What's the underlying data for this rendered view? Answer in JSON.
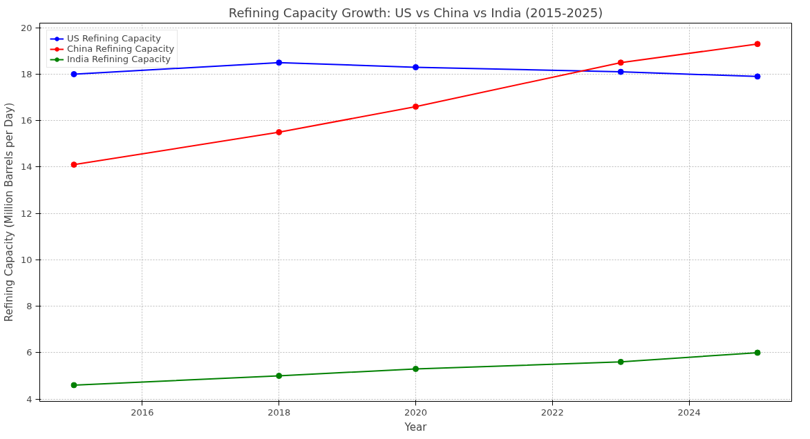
{
  "chart_data": {
    "type": "line",
    "title": "Refining Capacity Growth: US vs China vs India (2015-2025)",
    "xlabel": "Year",
    "ylabel": "Refining Capacity (Million Barrels per Day)",
    "x": [
      2015,
      2018,
      2020,
      2023,
      2025
    ],
    "series": [
      {
        "name": "US Refining Capacity",
        "color": "#0000ff",
        "values": [
          18.0,
          18.5,
          18.3,
          18.1,
          17.9
        ]
      },
      {
        "name": "China Refining Capacity",
        "color": "#ff0000",
        "values": [
          14.1,
          15.5,
          16.6,
          18.5,
          19.3
        ]
      },
      {
        "name": "India Refining Capacity",
        "color": "#008000",
        "values": [
          4.6,
          5.0,
          5.3,
          5.6,
          6.0
        ]
      }
    ],
    "xlim": [
      2014.5,
      2025.5
    ],
    "xticks": [
      2016,
      2018,
      2020,
      2022,
      2024
    ],
    "ylim": [
      3.9,
      20.2
    ],
    "yticks": [
      4,
      6,
      8,
      10,
      12,
      14,
      16,
      18,
      20
    ],
    "grid": true,
    "legend": "top left",
    "marker": "circle",
    "line_style": "solid"
  }
}
